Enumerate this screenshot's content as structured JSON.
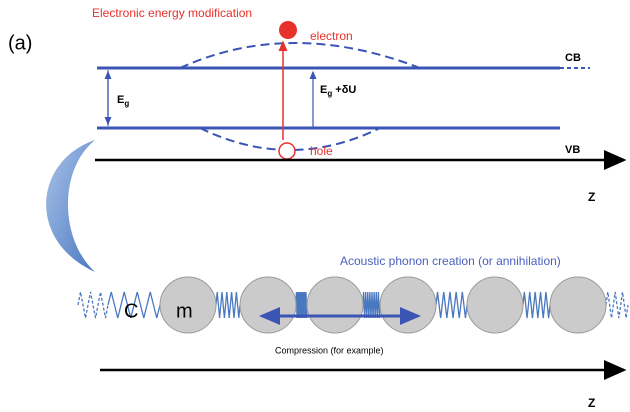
{
  "panel_label": "(a)",
  "energy": {
    "title": "Electronic energy modification",
    "electron": "electron",
    "hole": "hole",
    "cb": "CB",
    "vb": "VB",
    "eg_label": {
      "main": "E",
      "sub": "g"
    },
    "eg_du_label": {
      "main": "E",
      "sub": "g",
      "suffix": " +δU"
    },
    "axis_label": "Z"
  },
  "phonon": {
    "title": "Acoustic phonon creation (or annihilation)",
    "c_label": "C",
    "m_label": "m",
    "compression": "Compression (for example)",
    "axis_label": "Z"
  }
}
